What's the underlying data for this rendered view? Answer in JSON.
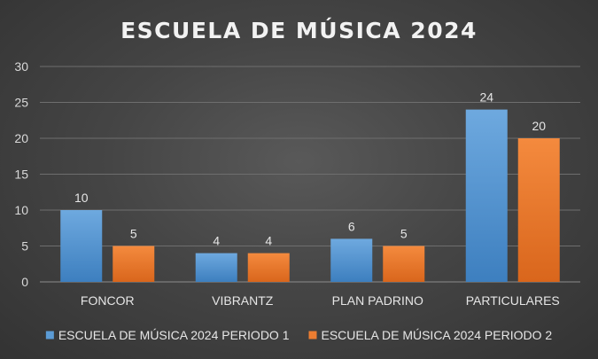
{
  "chart_data": {
    "type": "bar",
    "title": "ESCUELA DE MÚSICA 2024",
    "xlabel": "",
    "ylabel": "",
    "categories": [
      "FONCOR",
      "VIBRANTZ",
      "PLAN PADRINO",
      "PARTICULARES"
    ],
    "series": [
      {
        "name": "ESCUELA DE MÚSICA 2024 PERIODO 1",
        "values": [
          10,
          4,
          6,
          24
        ],
        "color": "#5b9bd5"
      },
      {
        "name": "ESCUELA DE MÚSICA 2024 PERIODO 2",
        "values": [
          5,
          4,
          5,
          20
        ],
        "color": "#ed7d31"
      }
    ],
    "ylim": [
      0,
      30
    ],
    "yticks": [
      "0",
      "5",
      "10",
      "15",
      "20",
      "25",
      "30"
    ],
    "grid": true,
    "legend": "bottom",
    "data_labels": true
  }
}
